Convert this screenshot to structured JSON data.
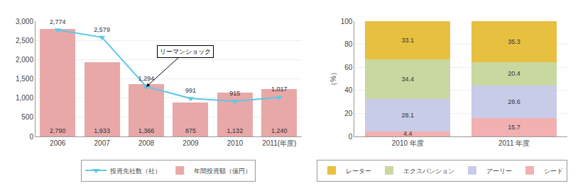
{
  "chart_data": [
    {
      "type": "bar",
      "categories": [
        "2006",
        "2007",
        "2008",
        "2009",
        "2010",
        "2011(年度)"
      ],
      "series": [
        {
          "name": "年間投資額（億円）",
          "type": "bar",
          "color": "#e8a8a8",
          "values": [
            2790,
            1933,
            1366,
            875,
            1132,
            1240
          ],
          "value_labels": [
            "2,790",
            "1,933",
            "1,366",
            "875",
            "1,132",
            "1,240"
          ]
        },
        {
          "name": "投資先社数（社）",
          "type": "line",
          "color": "#5bc8e8",
          "marker": "triangle-down",
          "values": [
            2774,
            2579,
            1294,
            991,
            915,
            1017
          ],
          "value_labels": [
            "2,774",
            "2,579",
            "1,294",
            "991",
            "915",
            "1,017"
          ]
        }
      ],
      "ylim": [
        0,
        3000
      ],
      "yticks": [
        0,
        500,
        {
          "value": 1000,
          "label": "1,000"
        },
        {
          "value": 1500,
          "label": "1,500"
        },
        {
          "value": 2000,
          "label": "2,000"
        },
        {
          "value": 2500,
          "label": "2,500"
        },
        {
          "value": 3000,
          "label": "3,000"
        }
      ],
      "grid": true,
      "data_labels": true,
      "legend": "bottom",
      "annotations": [
        {
          "text": "リーマンショック",
          "x": "2008",
          "y": 1294
        }
      ]
    },
    {
      "type": "bar",
      "stacked": true,
      "categories": [
        "2010 年度",
        "2011 年度"
      ],
      "series": [
        {
          "name": "シード",
          "color": "#f2b0b0",
          "values": [
            4.4,
            15.7
          ]
        },
        {
          "name": "アーリー",
          "color": "#c8cce8",
          "values": [
            28.1,
            28.6
          ]
        },
        {
          "name": "エクスパンション",
          "color": "#c8d8a0",
          "values": [
            34.4,
            20.4
          ]
        },
        {
          "name": "レーター",
          "color": "#e8c040",
          "values": [
            33.1,
            35.3
          ]
        }
      ],
      "ylabel": "（%）",
      "ylim": [
        0,
        100
      ],
      "yticks": [
        0,
        20,
        40,
        60,
        80,
        100
      ],
      "grid": true,
      "data_labels": true,
      "legend": "bottom"
    }
  ]
}
